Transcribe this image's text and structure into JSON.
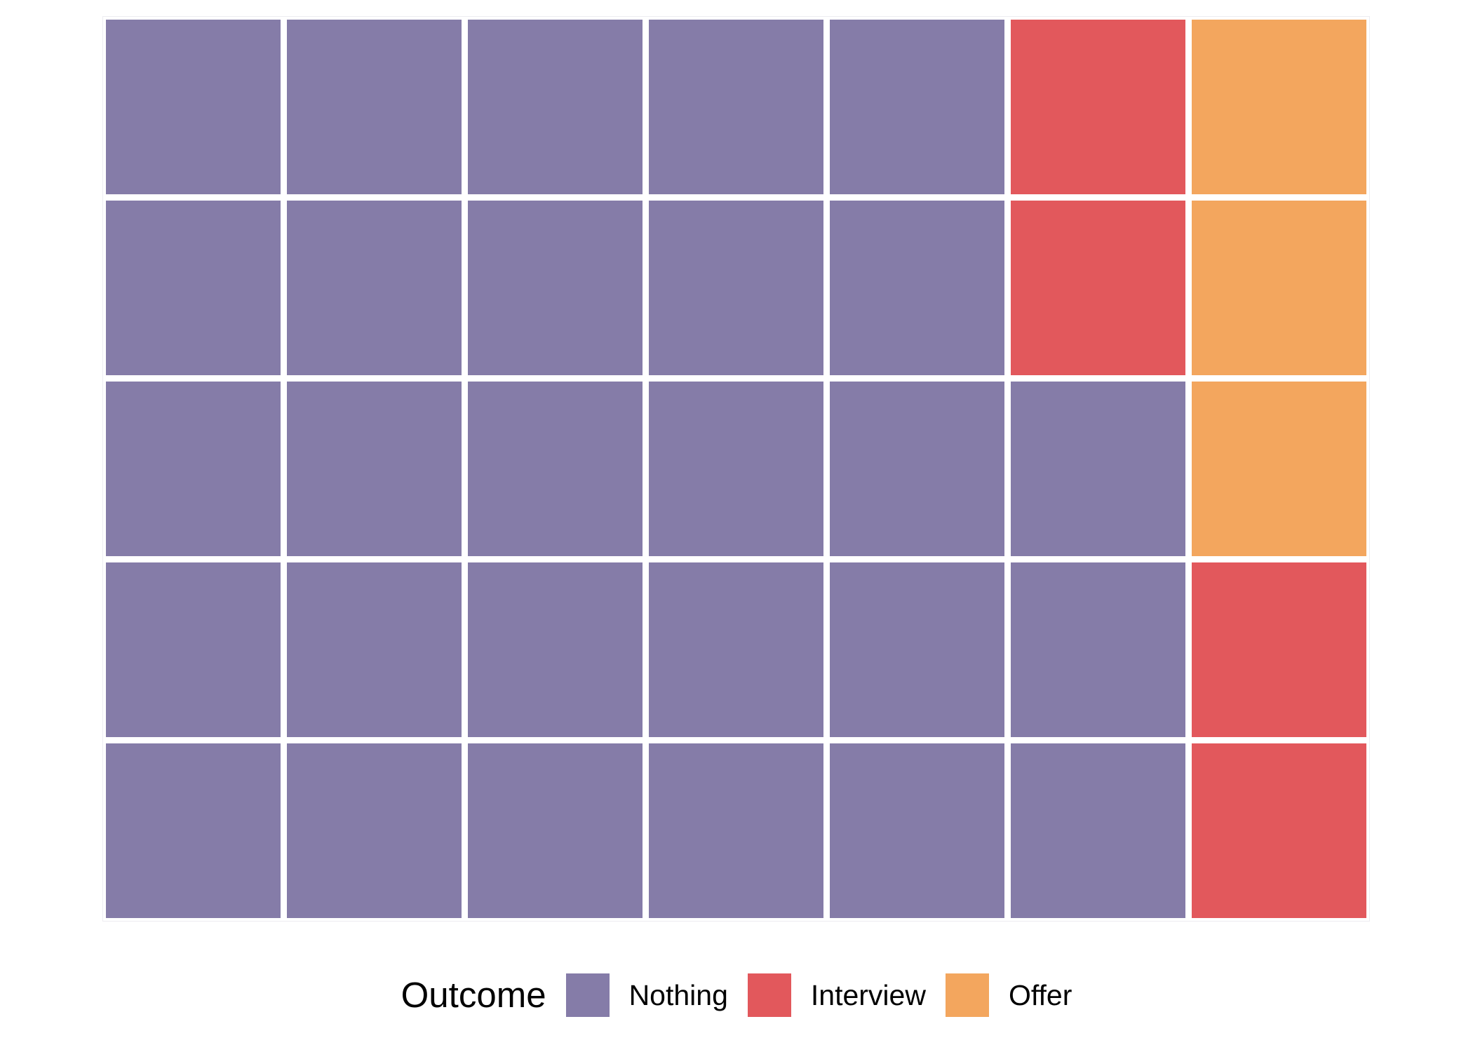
{
  "figure": {
    "background": "#ffffff",
    "panel_border_color": "#edecf1"
  },
  "colors": {
    "nothing": "#857CA8",
    "interview": "#E2585C",
    "offer": "#F3A65E"
  },
  "legend": {
    "title": "Outcome",
    "entries": [
      {
        "key": "nothing",
        "label": "Nothing",
        "color": "#857CA8"
      },
      {
        "key": "interview",
        "label": "Interview",
        "color": "#E2585C"
      },
      {
        "key": "offer",
        "label": "Offer",
        "color": "#F3A65E"
      }
    ]
  },
  "chart_data": {
    "type": "waffle",
    "title": "",
    "legend_title": "Outcome",
    "legend_position": "bottom",
    "rows": 5,
    "cols": 7,
    "total_cells": 35,
    "categories": [
      "Nothing",
      "Interview",
      "Offer"
    ],
    "counts": {
      "Nothing": 28,
      "Interview": 4,
      "Offer": 3
    },
    "fill_order": "column-wise, bottom-to-top, left-to-right",
    "grid": [
      [
        "nothing",
        "nothing",
        "nothing",
        "nothing",
        "nothing",
        "interview",
        "offer"
      ],
      [
        "nothing",
        "nothing",
        "nothing",
        "nothing",
        "nothing",
        "interview",
        "offer"
      ],
      [
        "nothing",
        "nothing",
        "nothing",
        "nothing",
        "nothing",
        "nothing",
        "offer"
      ],
      [
        "nothing",
        "nothing",
        "nothing",
        "nothing",
        "nothing",
        "nothing",
        "interview"
      ],
      [
        "nothing",
        "nothing",
        "nothing",
        "nothing",
        "nothing",
        "nothing",
        "interview"
      ]
    ]
  }
}
